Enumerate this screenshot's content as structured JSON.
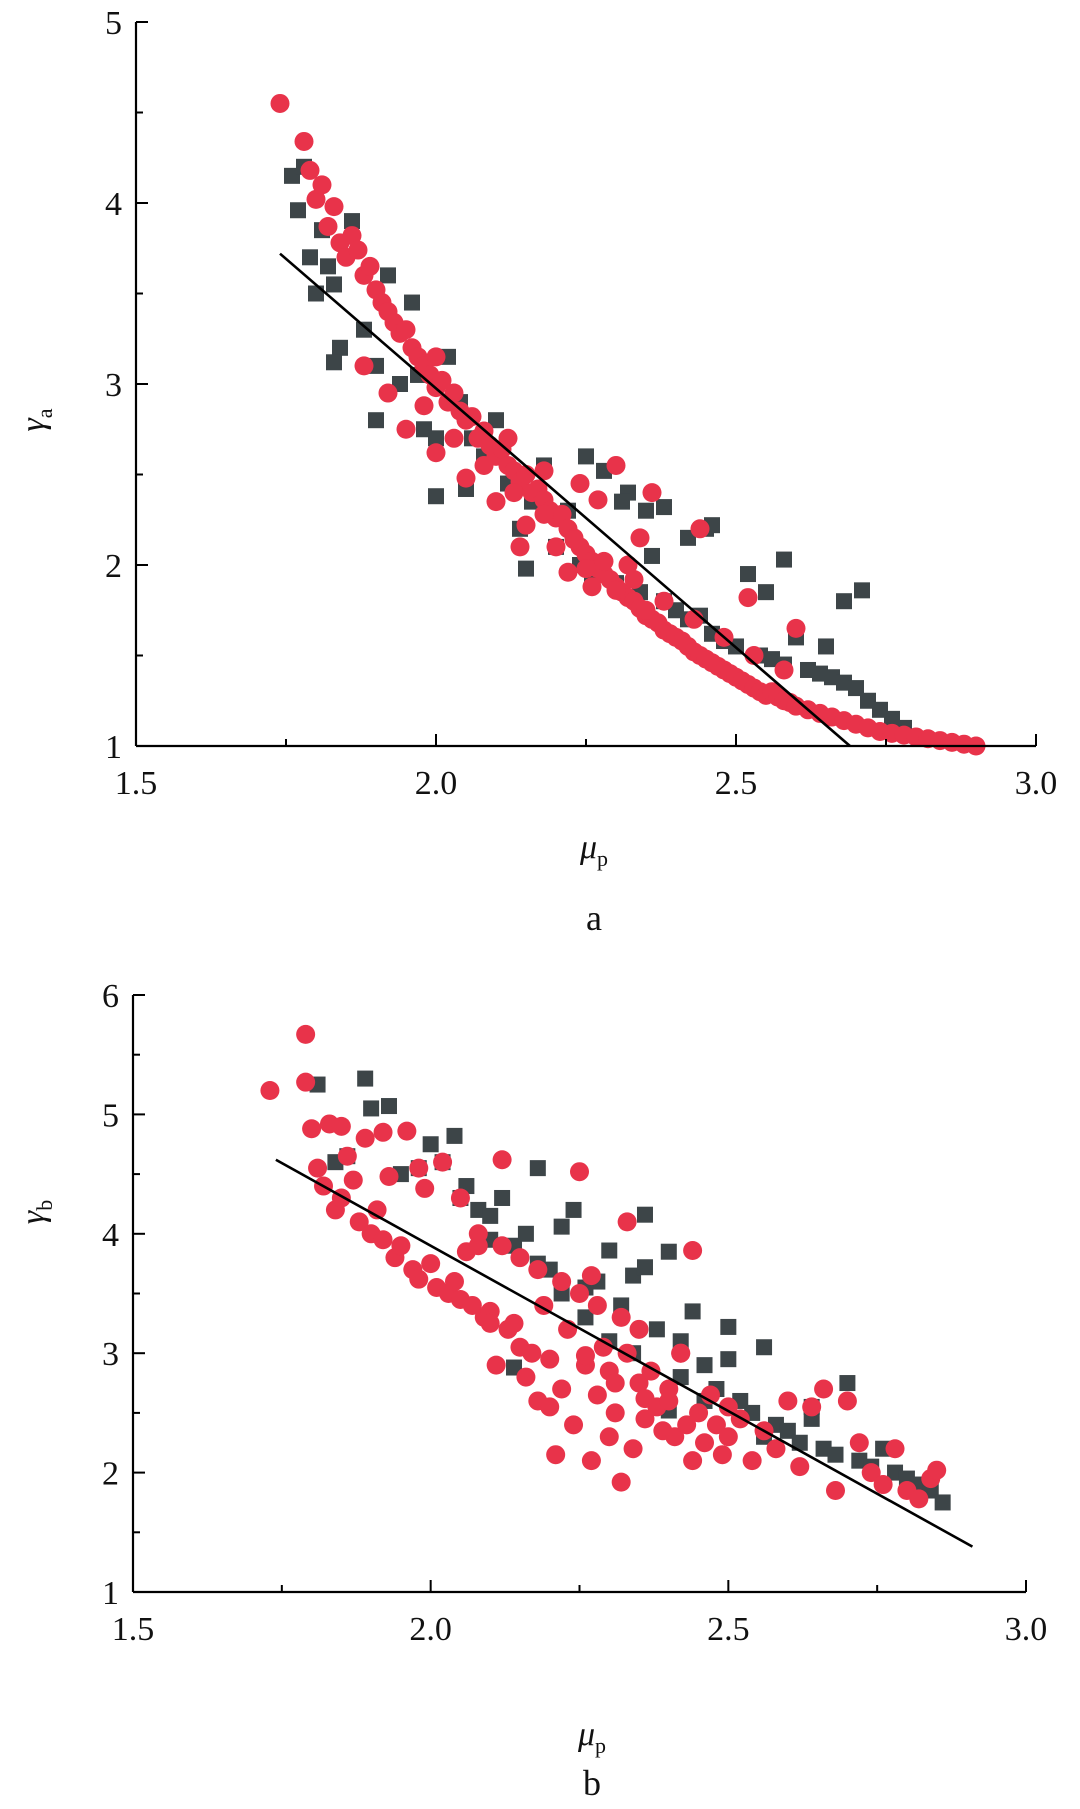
{
  "figure": {
    "colors": {
      "series_a": "#e8334a",
      "series_b": "#3d4548",
      "fit": "#000000",
      "axis": "#000000"
    }
  },
  "chart_data": [
    {
      "type": "scatter",
      "panel_label": "a",
      "xlabel_symbol": "μ",
      "xlabel_sub": "p",
      "ylabel_symbol": "γ",
      "ylabel_sub": "a",
      "xlim": [
        1.5,
        3.0
      ],
      "ylim": [
        1,
        5
      ],
      "xticks": [
        "1.5",
        "2.0",
        "2.5",
        "3.0"
      ],
      "yticks": [
        "1",
        "2",
        "3",
        "4",
        "5"
      ],
      "fit_line": {
        "x": [
          1.74,
          2.69
        ],
        "y": [
          3.72,
          1.0
        ]
      },
      "series": [
        {
          "name": "red circles",
          "marker": "circle",
          "color": "#e8334a",
          "x": [
            1.74,
            1.78,
            1.79,
            1.8,
            1.81,
            1.82,
            1.83,
            1.84,
            1.85,
            1.86,
            1.87,
            1.88,
            1.89,
            1.9,
            1.91,
            1.92,
            1.93,
            1.94,
            1.95,
            1.96,
            1.97,
            1.98,
            1.99,
            2.0,
            2.01,
            2.02,
            2.03,
            2.04,
            2.05,
            2.06,
            2.07,
            2.08,
            2.09,
            2.1,
            2.11,
            2.12,
            2.13,
            2.14,
            2.15,
            2.16,
            2.17,
            2.18,
            2.19,
            2.2,
            2.21,
            2.22,
            2.23,
            2.24,
            2.25,
            2.26,
            2.27,
            2.28,
            2.29,
            2.3,
            2.31,
            2.32,
            2.33,
            2.34,
            2.35,
            2.36,
            2.37,
            2.38,
            2.39,
            2.4,
            2.41,
            2.42,
            2.43,
            2.44,
            2.45,
            2.46,
            2.47,
            2.48,
            2.49,
            2.5,
            2.51,
            2.52,
            2.53,
            2.54,
            2.55,
            2.56,
            2.57,
            2.58,
            2.59,
            2.6,
            2.62,
            2.64,
            2.66,
            2.68,
            2.7,
            2.72,
            2.74,
            2.76,
            2.78,
            2.8,
            2.82,
            2.84,
            2.86,
            2.88,
            2.9,
            1.95,
            2.0,
            2.05,
            2.1,
            2.15,
            2.2,
            2.25,
            2.3,
            2.35,
            1.88,
            1.92,
            1.98,
            2.03,
            2.08,
            2.13,
            2.18,
            2.23,
            2.28,
            2.33,
            2.38,
            2.43,
            2.48,
            2.53,
            2.58,
            2.0,
            2.12,
            2.24,
            2.36,
            2.44,
            2.52,
            2.6,
            2.14,
            2.22,
            2.26,
            2.3,
            2.34,
            2.18,
            2.27,
            2.32
          ],
          "y": [
            4.55,
            4.34,
            4.18,
            4.02,
            4.1,
            3.87,
            3.98,
            3.78,
            3.7,
            3.82,
            3.74,
            3.6,
            3.65,
            3.52,
            3.45,
            3.4,
            3.34,
            3.28,
            3.3,
            3.2,
            3.15,
            3.1,
            3.05,
            2.98,
            3.02,
            2.9,
            2.95,
            2.85,
            2.8,
            2.82,
            2.7,
            2.74,
            2.66,
            2.6,
            2.64,
            2.55,
            2.52,
            2.46,
            2.5,
            2.4,
            2.42,
            2.36,
            2.3,
            2.26,
            2.28,
            2.2,
            2.15,
            2.1,
            2.06,
            2.02,
            1.98,
            1.95,
            1.92,
            1.88,
            1.85,
            1.82,
            1.8,
            1.76,
            1.72,
            1.7,
            1.68,
            1.64,
            1.62,
            1.6,
            1.58,
            1.55,
            1.52,
            1.5,
            1.48,
            1.46,
            1.44,
            1.42,
            1.4,
            1.38,
            1.36,
            1.34,
            1.32,
            1.3,
            1.28,
            1.3,
            1.27,
            1.25,
            1.24,
            1.22,
            1.2,
            1.18,
            1.16,
            1.14,
            1.12,
            1.1,
            1.08,
            1.07,
            1.06,
            1.05,
            1.04,
            1.03,
            1.02,
            1.01,
            1.0,
            2.75,
            2.62,
            2.48,
            2.35,
            2.22,
            2.1,
            1.98,
            1.86,
            1.75,
            3.1,
            2.95,
            2.88,
            2.7,
            2.55,
            2.4,
            2.28,
            2.14,
            2.02,
            1.92,
            1.8,
            1.7,
            1.6,
            1.5,
            1.42,
            3.15,
            2.7,
            2.45,
            2.4,
            2.2,
            1.82,
            1.65,
            2.1,
            1.96,
            1.88,
            2.55,
            2.15,
            2.52,
            2.36,
            2.0
          ]
        },
        {
          "name": "dark squares",
          "marker": "square",
          "color": "#3d4548",
          "x": [
            1.76,
            1.77,
            1.78,
            1.79,
            1.8,
            1.81,
            1.82,
            1.83,
            1.84,
            1.86,
            1.88,
            1.9,
            1.92,
            1.94,
            1.96,
            1.98,
            2.0,
            2.02,
            2.04,
            2.06,
            2.08,
            2.1,
            2.12,
            2.14,
            2.16,
            2.18,
            2.2,
            2.22,
            2.24,
            2.26,
            2.28,
            2.3,
            2.32,
            2.34,
            2.36,
            2.38,
            2.4,
            2.42,
            2.44,
            2.46,
            2.48,
            2.5,
            2.52,
            2.54,
            2.56,
            2.58,
            2.6,
            2.62,
            2.64,
            2.66,
            2.68,
            2.7,
            2.72,
            2.74,
            2.76,
            2.78,
            1.83,
            1.9,
            1.97,
            2.0,
            2.05,
            2.15,
            2.25,
            2.35,
            2.45,
            2.55,
            2.65,
            2.31,
            2.38,
            2.42,
            2.46,
            2.58,
            2.68,
            2.71
          ],
          "y": [
            4.15,
            3.96,
            4.2,
            3.7,
            3.5,
            3.85,
            3.65,
            3.55,
            3.2,
            3.9,
            3.3,
            3.1,
            3.6,
            3.0,
            3.45,
            2.75,
            2.38,
            3.15,
            2.9,
            2.7,
            2.6,
            2.8,
            2.45,
            2.2,
            2.35,
            2.55,
            2.1,
            2.3,
            2.0,
            1.95,
            2.52,
            1.9,
            2.4,
            1.85,
            2.05,
            1.8,
            1.75,
            1.7,
            1.72,
            1.62,
            1.58,
            1.55,
            1.95,
            1.5,
            1.48,
            1.45,
            1.6,
            1.42,
            1.4,
            1.38,
            1.35,
            1.32,
            1.25,
            1.2,
            1.15,
            1.1,
            3.12,
            2.8,
            3.05,
            2.7,
            2.42,
            1.98,
            2.6,
            2.3,
            2.2,
            1.85,
            1.55,
            2.35,
            2.32,
            2.15,
            2.22,
            2.03,
            1.8,
            1.86
          ]
        }
      ]
    },
    {
      "type": "scatter",
      "panel_label": "b",
      "xlabel_symbol": "μ",
      "xlabel_sub": "p",
      "ylabel_symbol": "γ",
      "ylabel_sub": "b",
      "xlim": [
        1.5,
        3.0
      ],
      "ylim": [
        1,
        6
      ],
      "xticks": [
        "1.5",
        "2.0",
        "2.5",
        "3.0"
      ],
      "yticks": [
        "1",
        "2",
        "3",
        "4",
        "5",
        "6"
      ],
      "fit_line": {
        "x": [
          1.74,
          2.91
        ],
        "y": [
          4.62,
          1.38
        ]
      },
      "series": [
        {
          "name": "red circles",
          "marker": "circle",
          "color": "#e8334a",
          "x": [
            1.73,
            1.79,
            1.79,
            1.8,
            1.81,
            1.82,
            1.83,
            1.84,
            1.85,
            1.86,
            1.87,
            1.88,
            1.89,
            1.9,
            1.91,
            1.92,
            1.93,
            1.94,
            1.95,
            1.96,
            1.97,
            1.98,
            1.99,
            2.0,
            2.01,
            2.02,
            2.03,
            2.04,
            2.05,
            2.06,
            2.07,
            2.08,
            2.09,
            2.1,
            2.11,
            2.12,
            2.13,
            2.14,
            2.15,
            2.16,
            2.17,
            2.18,
            2.19,
            2.2,
            2.21,
            2.22,
            2.23,
            2.24,
            2.25,
            2.26,
            2.27,
            2.28,
            2.29,
            2.3,
            2.31,
            2.32,
            2.33,
            2.34,
            2.35,
            2.36,
            2.37,
            2.38,
            2.39,
            2.4,
            2.41,
            2.42,
            2.43,
            2.44,
            2.45,
            2.46,
            2.47,
            2.48,
            2.49,
            2.5,
            2.52,
            2.54,
            2.56,
            2.58,
            2.6,
            2.62,
            2.64,
            2.66,
            2.68,
            2.7,
            2.72,
            2.74,
            2.76,
            2.78,
            2.8,
            2.82,
            2.84,
            2.85,
            1.85,
            1.92,
            1.98,
            2.05,
            2.12,
            2.18,
            2.25,
            2.32,
            2.08,
            2.15,
            2.22,
            2.28,
            2.35,
            2.42,
            2.2,
            2.3,
            2.4,
            2.5,
            2.27,
            2.33,
            2.44,
            2.1,
            2.36,
            2.26,
            2.31
          ],
          "y": [
            5.2,
            5.67,
            5.27,
            4.88,
            4.55,
            4.4,
            4.92,
            4.2,
            4.3,
            4.65,
            4.45,
            4.1,
            4.8,
            4.0,
            4.2,
            3.95,
            4.48,
            3.8,
            3.9,
            4.86,
            3.7,
            3.62,
            4.38,
            3.75,
            3.55,
            4.6,
            3.5,
            3.6,
            3.45,
            3.85,
            3.4,
            3.9,
            3.3,
            3.35,
            2.9,
            4.62,
            3.2,
            3.25,
            3.05,
            2.8,
            3.0,
            2.6,
            3.4,
            2.55,
            2.15,
            2.7,
            3.2,
            2.4,
            4.52,
            2.9,
            2.1,
            2.65,
            3.05,
            2.3,
            2.5,
            1.92,
            3.0,
            2.2,
            2.75,
            2.45,
            2.85,
            2.55,
            2.35,
            2.6,
            2.3,
            3.0,
            2.4,
            2.1,
            2.5,
            2.25,
            2.65,
            2.4,
            2.15,
            2.3,
            2.45,
            2.1,
            2.35,
            2.2,
            2.6,
            2.05,
            2.55,
            2.7,
            1.85,
            2.6,
            2.25,
            2.0,
            1.9,
            2.2,
            1.85,
            1.78,
            1.95,
            2.02,
            4.9,
            4.85,
            4.55,
            4.3,
            3.9,
            3.7,
            3.5,
            3.3,
            4.0,
            3.8,
            3.6,
            3.4,
            3.2,
            3.0,
            2.95,
            2.85,
            2.7,
            2.55,
            3.65,
            4.1,
            3.86,
            3.25,
            2.62,
            2.98,
            2.75
          ]
        },
        {
          "name": "dark squares",
          "marker": "square",
          "color": "#3d4548",
          "x": [
            1.81,
            1.84,
            1.86,
            1.89,
            1.9,
            1.93,
            1.95,
            1.98,
            2.0,
            2.02,
            2.04,
            2.05,
            2.06,
            2.08,
            2.1,
            2.12,
            2.14,
            2.16,
            2.18,
            2.2,
            2.22,
            2.24,
            2.26,
            2.28,
            2.3,
            2.32,
            2.34,
            2.36,
            2.38,
            2.4,
            2.42,
            2.44,
            2.46,
            2.48,
            2.5,
            2.52,
            2.54,
            2.56,
            2.58,
            2.6,
            2.62,
            2.64,
            2.66,
            2.68,
            2.7,
            2.72,
            2.74,
            2.76,
            2.78,
            2.8,
            2.82,
            2.84,
            2.86,
            2.1,
            2.18,
            2.26,
            2.34,
            2.42,
            2.5,
            2.3,
            2.36,
            2.14,
            2.4,
            2.46,
            2.56,
            2.64,
            2.22
          ],
          "y": [
            5.25,
            4.6,
            4.65,
            5.3,
            5.05,
            5.07,
            4.5,
            4.55,
            4.75,
            4.6,
            4.82,
            4.3,
            4.4,
            4.2,
            4.15,
            4.3,
            3.9,
            4.0,
            4.55,
            3.7,
            3.5,
            4.2,
            3.3,
            3.6,
            3.1,
            3.4,
            3.0,
            4.16,
            3.2,
            3.85,
            2.8,
            3.35,
            2.9,
            2.7,
            3.22,
            2.6,
            2.5,
            3.05,
            2.4,
            2.35,
            2.25,
            2.55,
            2.2,
            2.15,
            2.75,
            2.1,
            2.05,
            2.2,
            2.0,
            1.95,
            1.9,
            1.85,
            1.75,
            3.95,
            3.75,
            3.55,
            3.65,
            3.1,
            2.95,
            3.86,
            3.72,
            2.88,
            2.52,
            2.6,
            2.3,
            2.45,
            4.06
          ]
        }
      ]
    }
  ]
}
